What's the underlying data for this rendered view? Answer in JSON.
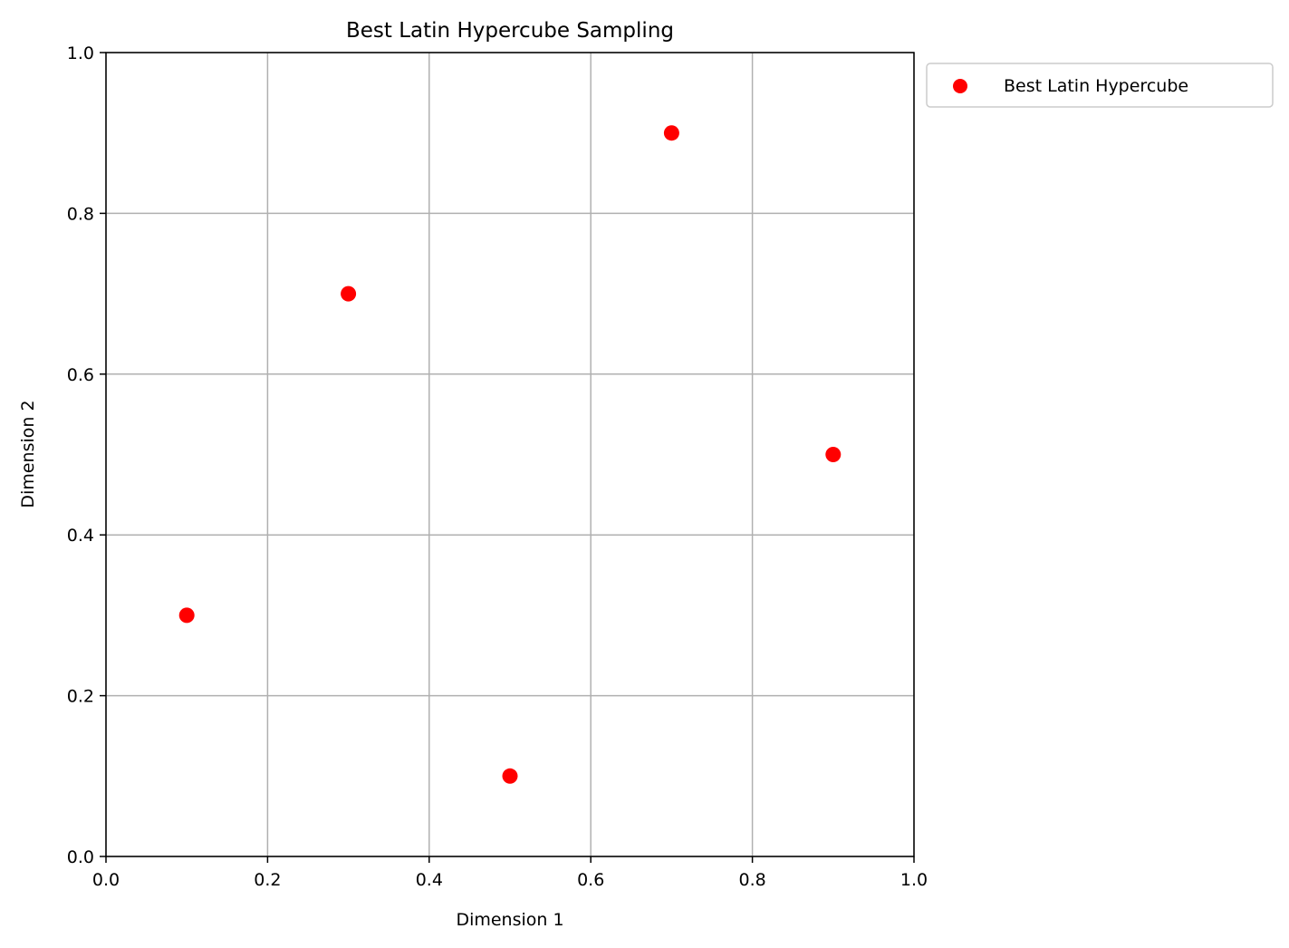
{
  "chart_data": {
    "type": "scatter",
    "title": "Best Latin Hypercube Sampling",
    "xlabel": "Dimension 1",
    "ylabel": "Dimension 2",
    "xlim": [
      0.0,
      1.0
    ],
    "ylim": [
      0.0,
      1.0
    ],
    "xticks": [
      0.0,
      0.2,
      0.4,
      0.6,
      0.8,
      1.0
    ],
    "yticks": [
      0.0,
      0.2,
      0.4,
      0.6,
      0.8,
      1.0
    ],
    "xtick_labels": [
      "0.0",
      "0.2",
      "0.4",
      "0.6",
      "0.8",
      "1.0"
    ],
    "ytick_labels": [
      "0.0",
      "0.2",
      "0.4",
      "0.6",
      "0.8",
      "1.0"
    ],
    "grid": true,
    "legend_position": "outside upper right",
    "series": [
      {
        "name": "Best Latin Hypercube",
        "color": "#ff0000",
        "points": [
          {
            "x": 0.1,
            "y": 0.3
          },
          {
            "x": 0.3,
            "y": 0.7
          },
          {
            "x": 0.5,
            "y": 0.1
          },
          {
            "x": 0.7,
            "y": 0.9
          },
          {
            "x": 0.9,
            "y": 0.5
          }
        ]
      }
    ]
  }
}
